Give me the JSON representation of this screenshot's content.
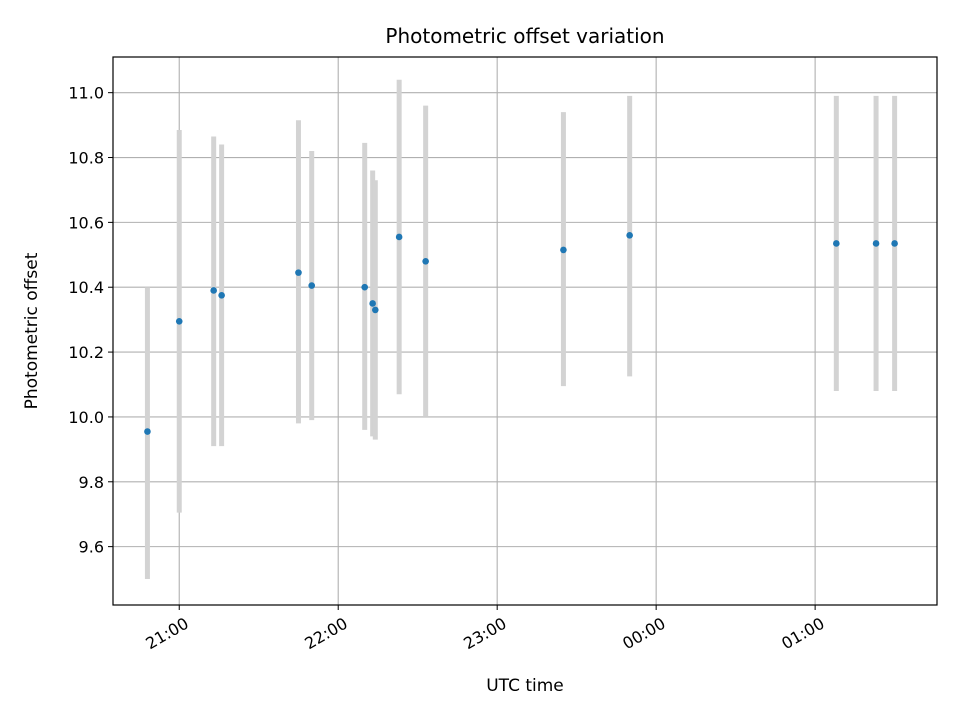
{
  "chart_data": {
    "type": "scatter",
    "title": "Photometric offset variation",
    "xlabel": "UTC time",
    "ylabel": "Photometric offset",
    "xlim": [
      "20:35",
      "01:46"
    ],
    "ylim": [
      9.42,
      11.11
    ],
    "x_ticks": [
      "21:00",
      "22:00",
      "23:00",
      "00:00",
      "01:00"
    ],
    "y_ticks": [
      "9.6",
      "9.8",
      "10.0",
      "10.2",
      "10.4",
      "10.6",
      "10.8",
      "11.0"
    ],
    "grid": true,
    "point_color": "#1f77b4",
    "errorbar_color": "#d3d3d3",
    "points": [
      {
        "t": "20:48",
        "y": 9.955,
        "lo": 9.5,
        "hi": 10.4
      },
      {
        "t": "21:00",
        "y": 10.295,
        "lo": 9.705,
        "hi": 10.885
      },
      {
        "t": "21:13",
        "y": 10.39,
        "lo": 9.91,
        "hi": 10.865
      },
      {
        "t": "21:16",
        "y": 10.375,
        "lo": 9.91,
        "hi": 10.84
      },
      {
        "t": "21:45",
        "y": 10.445,
        "lo": 9.98,
        "hi": 10.915
      },
      {
        "t": "21:50",
        "y": 10.405,
        "lo": 9.99,
        "hi": 10.82
      },
      {
        "t": "22:10",
        "y": 10.4,
        "lo": 9.96,
        "hi": 10.845
      },
      {
        "t": "22:13",
        "y": 10.35,
        "lo": 9.94,
        "hi": 10.76
      },
      {
        "t": "22:14",
        "y": 10.33,
        "lo": 9.93,
        "hi": 10.73
      },
      {
        "t": "22:23",
        "y": 10.555,
        "lo": 10.07,
        "hi": 11.04
      },
      {
        "t": "22:33",
        "y": 10.48,
        "lo": 10.0,
        "hi": 10.96
      },
      {
        "t": "23:25",
        "y": 10.515,
        "lo": 10.095,
        "hi": 10.94
      },
      {
        "t": "23:50",
        "y": 10.56,
        "lo": 10.125,
        "hi": 10.99
      },
      {
        "t": "01:08",
        "y": 10.535,
        "lo": 10.08,
        "hi": 10.99
      },
      {
        "t": "01:23",
        "y": 10.535,
        "lo": 10.08,
        "hi": 10.99
      },
      {
        "t": "01:30",
        "y": 10.535,
        "lo": 10.08,
        "hi": 10.99
      }
    ]
  }
}
